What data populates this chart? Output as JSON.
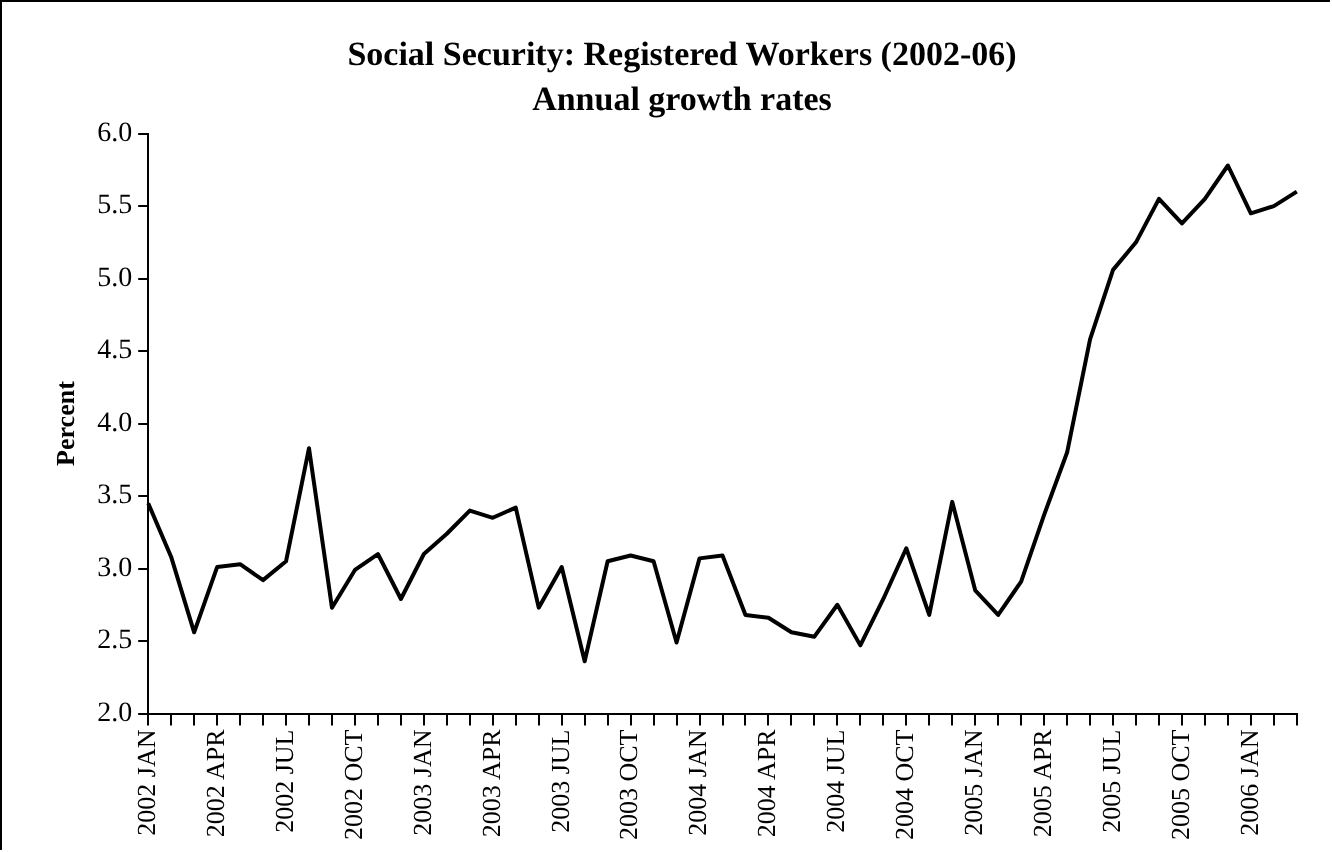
{
  "chart_data": {
    "type": "line",
    "title": "Social Security: Registered Workers (2002-06)",
    "subtitle": "Annual growth rates",
    "ylabel": "Percent",
    "categories": [
      "2002 JAN",
      null,
      null,
      "2002 APR",
      null,
      null,
      "2002 JUL",
      null,
      null,
      "2002 OCT",
      null,
      null,
      "2003 JAN",
      null,
      null,
      "2003 APR",
      null,
      null,
      "2003 JUL",
      null,
      null,
      "2003 OCT",
      null,
      null,
      "2004 JAN",
      null,
      null,
      "2004 APR",
      null,
      null,
      "2004 JUL",
      null,
      null,
      "2004 OCT",
      null,
      null,
      "2005 JAN",
      null,
      null,
      "2005 APR",
      null,
      null,
      "2005 JUL",
      null,
      null,
      "2005 OCT",
      null,
      null,
      "2006 JAN",
      null,
      null
    ],
    "series": [
      {
        "color": "#000000",
        "values": [
          3.45,
          3.08,
          2.56,
          3.01,
          3.03,
          2.92,
          3.05,
          3.83,
          2.73,
          2.99,
          3.1,
          2.79,
          3.1,
          3.24,
          3.4,
          3.35,
          3.42,
          2.73,
          3.01,
          2.36,
          3.05,
          3.09,
          3.05,
          2.49,
          3.07,
          3.09,
          2.68,
          2.66,
          2.56,
          2.53,
          2.75,
          2.47,
          2.79,
          3.14,
          2.68,
          3.46,
          2.85,
          2.68,
          2.91,
          3.37,
          3.8,
          4.58,
          5.06,
          5.25,
          5.55,
          5.38,
          5.55,
          5.78,
          5.45,
          5.5,
          5.6
        ]
      }
    ],
    "ylim": [
      2.0,
      6.0
    ],
    "yticks": [
      {
        "value": 2,
        "label": "2.0"
      },
      2.5,
      {
        "value": 3,
        "label": "3.0"
      },
      3.5,
      {
        "value": 4,
        "label": "4.0"
      },
      4.5,
      {
        "value": 5,
        "label": "5.0"
      },
      5.5,
      {
        "value": 6,
        "label": "6.0"
      }
    ],
    "grid": false,
    "legend": false,
    "marker": "none",
    "line_style": "solid"
  }
}
